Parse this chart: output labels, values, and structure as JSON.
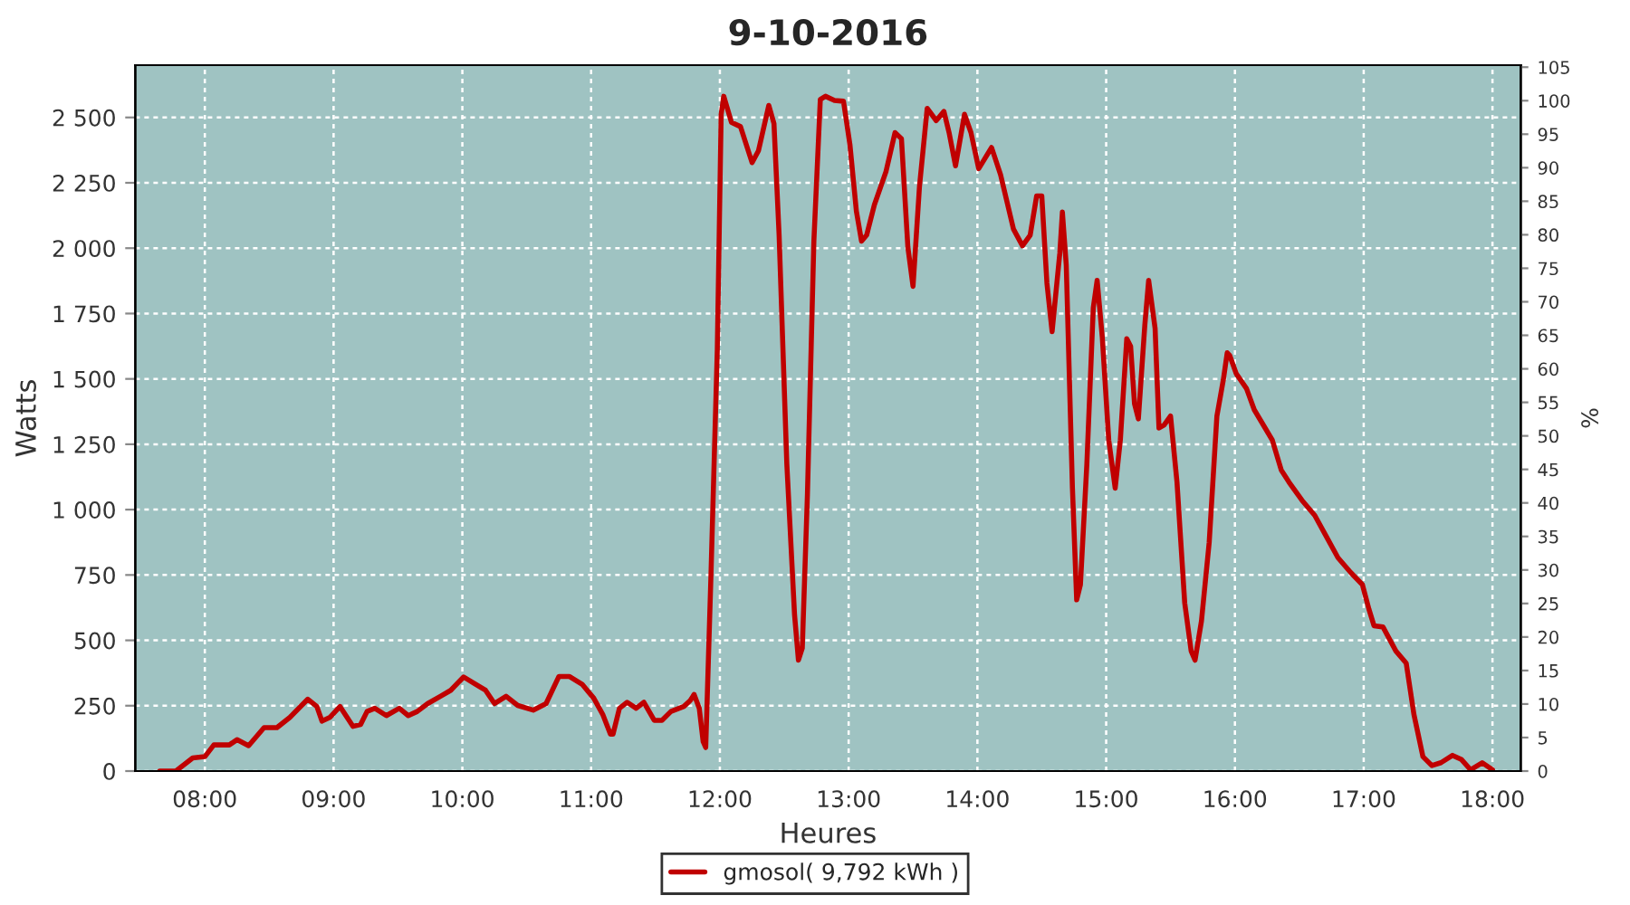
{
  "chart_data": {
    "type": "line",
    "title": "9-10-2016",
    "xlabel": "Heures",
    "ylabel": "Watts",
    "y2label": "%",
    "xlim": [
      7.46,
      18.22
    ],
    "xticks": [
      {
        "value": 8,
        "label": "08:00"
      },
      {
        "value": 9,
        "label": "09:00"
      },
      {
        "value": 10,
        "label": "10:00"
      },
      {
        "value": 11,
        "label": "11:00"
      },
      {
        "value": 12,
        "label": "12:00"
      },
      {
        "value": 13,
        "label": "13:00"
      },
      {
        "value": 14,
        "label": "14:00"
      },
      {
        "value": 15,
        "label": "15:00"
      },
      {
        "value": 16,
        "label": "16:00"
      },
      {
        "value": 17,
        "label": "17:00"
      },
      {
        "value": 18,
        "label": "18:00"
      }
    ],
    "ylim": [
      0,
      2700
    ],
    "yticks": [
      0,
      250,
      500,
      750,
      {
        "value": 1000,
        "label": "1 000"
      },
      {
        "value": 1250,
        "label": "1 250"
      },
      {
        "value": 1500,
        "label": "1 500"
      },
      {
        "value": 1750,
        "label": "1 750"
      },
      {
        "value": 2000,
        "label": "2 000"
      },
      {
        "value": 2250,
        "label": "2 250"
      },
      {
        "value": 2500,
        "label": "2 500"
      }
    ],
    "y2lim": [
      0,
      105.3
    ],
    "y2ticks": [
      0,
      5,
      10,
      15,
      20,
      25,
      30,
      35,
      40,
      45,
      50,
      55,
      60,
      65,
      70,
      75,
      80,
      85,
      90,
      95,
      100,
      105
    ],
    "grid": true,
    "legend": "bottom",
    "marker": "none",
    "line_style": "solid",
    "series": [
      {
        "name": "gmosol( 9,792 kWh )",
        "color": "#c00000",
        "x": [
          7.65,
          7.775,
          7.906,
          8.0,
          8.07,
          8.19,
          8.25,
          8.34,
          8.46,
          8.56,
          8.66,
          8.8,
          8.87,
          8.91,
          8.97,
          9.05,
          9.15,
          9.21,
          9.26,
          9.32,
          9.41,
          9.51,
          9.58,
          9.65,
          9.73,
          9.83,
          9.91,
          10.01,
          10.08,
          10.18,
          10.25,
          10.34,
          10.43,
          10.55,
          10.65,
          10.75,
          10.83,
          10.93,
          11.02,
          11.09,
          11.15,
          11.17,
          11.22,
          11.28,
          11.35,
          11.41,
          11.49,
          11.55,
          11.62,
          11.72,
          11.77,
          11.8,
          11.84,
          11.87,
          11.89,
          11.93,
          11.98,
          12.01,
          12.03,
          12.09,
          12.16,
          12.25,
          12.3,
          12.38,
          12.42,
          12.46,
          12.52,
          12.58,
          12.61,
          12.64,
          12.68,
          12.73,
          12.78,
          12.82,
          12.89,
          12.96,
          13.01,
          13.06,
          13.1,
          13.14,
          13.2,
          13.29,
          13.36,
          13.41,
          13.46,
          13.5,
          13.55,
          13.61,
          13.68,
          13.74,
          13.78,
          13.83,
          13.9,
          13.95,
          14.01,
          14.11,
          14.18,
          14.28,
          14.35,
          14.41,
          14.46,
          14.5,
          14.54,
          14.58,
          14.64,
          14.66,
          14.69,
          14.738,
          14.771,
          14.8,
          14.85,
          14.9,
          14.93,
          14.97,
          15.02,
          15.07,
          15.11,
          15.16,
          15.19,
          15.22,
          15.25,
          15.3,
          15.33,
          15.38,
          15.41,
          15.45,
          15.5,
          15.55,
          15.61,
          15.66,
          15.69,
          15.74,
          15.8,
          15.86,
          15.91,
          15.94,
          15.96,
          16.01,
          16.09,
          16.15,
          16.22,
          16.29,
          16.36,
          16.42,
          16.52,
          16.62,
          16.71,
          16.8,
          16.9,
          16.99,
          17.04,
          17.08,
          17.15,
          17.25,
          17.33,
          17.39,
          17.46,
          17.53,
          17.6,
          17.69,
          17.76,
          17.83,
          17.92,
          18.0
        ],
        "values": [
          0,
          0,
          50,
          55,
          100,
          100,
          120,
          97,
          166,
          166,
          205,
          275,
          247,
          191,
          205,
          247,
          171,
          178,
          228,
          240,
          212,
          240,
          212,
          228,
          258,
          286,
          309,
          360,
          339,
          309,
          258,
          286,
          251,
          233,
          258,
          362,
          362,
          332,
          279,
          217,
          141,
          141,
          240,
          263,
          240,
          263,
          194,
          194,
          228,
          247,
          270,
          293,
          240,
          113,
          90,
          736,
          1612,
          2512,
          2581,
          2481,
          2465,
          2327,
          2373,
          2546,
          2477,
          2050,
          1174,
          597,
          424,
          470,
          1059,
          2027,
          2569,
          2581,
          2565,
          2562,
          2396,
          2142,
          2027,
          2050,
          2166,
          2293,
          2442,
          2419,
          2004,
          1854,
          2235,
          2535,
          2488,
          2523,
          2442,
          2315,
          2512,
          2442,
          2304,
          2385,
          2281,
          2073,
          2009,
          2050,
          2200,
          2200,
          1866,
          1681,
          1981,
          2138,
          1935,
          1082,
          655,
          713,
          1174,
          1773,
          1877,
          1658,
          1266,
          1082,
          1266,
          1654,
          1624,
          1405,
          1347,
          1705,
          1877,
          1693,
          1312,
          1324,
          1358,
          1105,
          643,
          459,
          424,
          574,
          874,
          1358,
          1497,
          1600,
          1589,
          1520,
          1463,
          1382,
          1324,
          1266,
          1151,
          1105,
          1036,
          978,
          897,
          816,
          759,
          713,
          620,
          556,
          551,
          459,
          413,
          217,
          55,
          21,
          32,
          60,
          44,
          5,
          32,
          5
        ]
      }
    ]
  }
}
